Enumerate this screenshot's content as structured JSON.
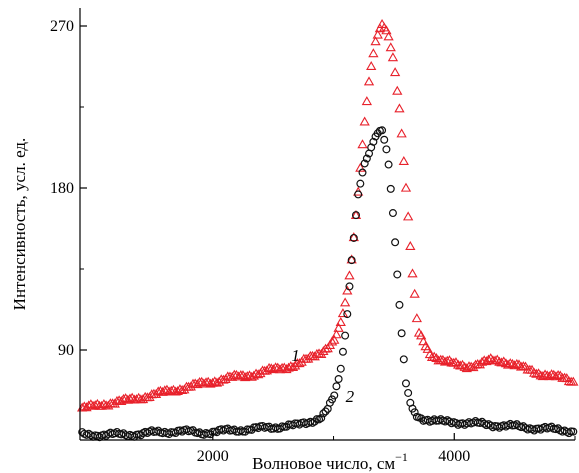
{
  "chart_data": {
    "type": "scatter",
    "title": "",
    "xlabel": "Волновое число, см",
    "xlabel_sup": "−1",
    "ylabel": "Интенсивность, усл. ед.",
    "xlim": [
      900,
      5000
    ],
    "ylim": [
      40,
      280
    ],
    "x_ticks": [
      2000,
      4000
    ],
    "x_tick_labels": [
      "2000",
      "4000"
    ],
    "x_minor_ticks": [
      1000,
      3000,
      5000
    ],
    "y_ticks": [
      90,
      180,
      270
    ],
    "y_tick_labels": [
      "90",
      "180",
      "270"
    ],
    "y_minor_ticks": [
      135,
      225
    ],
    "grid": false,
    "legend": "none",
    "series": [
      {
        "name": "1",
        "marker": "triangle-open",
        "color": "#e8212b",
        "label_at": [
          2650,
          84
        ],
        "x": [
          900,
          1100,
          1300,
          1500,
          1700,
          1900,
          2100,
          2300,
          2500,
          2700,
          2800,
          2900,
          3000,
          3050,
          3100,
          3150,
          3200,
          3250,
          3300,
          3350,
          3400,
          3450,
          3500,
          3550,
          3600,
          3650,
          3700,
          3800,
          3900,
          4000,
          4100,
          4200,
          4300,
          4400,
          4500,
          4600,
          4700,
          4800,
          4900,
          5000
        ],
        "y": [
          57,
          60,
          62,
          65,
          68,
          71,
          74,
          76,
          79,
          82,
          85,
          89,
          95,
          102,
          116,
          140,
          175,
          212,
          243,
          262,
          271,
          266,
          250,
          222,
          180,
          135,
          100,
          88,
          84,
          82,
          81,
          82,
          84,
          84,
          82,
          79,
          77,
          76,
          74,
          72
        ]
      },
      {
        "name": "2",
        "marker": "circle-open",
        "color": "#111111",
        "label_at": [
          3100,
          61
        ],
        "x": [
          900,
          1100,
          1300,
          1500,
          1700,
          1900,
          2100,
          2300,
          2500,
          2600,
          2700,
          2800,
          2900,
          2950,
          3000,
          3050,
          3100,
          3150,
          3200,
          3250,
          3300,
          3350,
          3400,
          3450,
          3500,
          3550,
          3600,
          3650,
          3700,
          3750,
          3800,
          3900,
          4000,
          4200,
          4400,
          4600,
          4800,
          5000
        ],
        "y": [
          43,
          43,
          43,
          44,
          45,
          44,
          45,
          46,
          47,
          48,
          48,
          50,
          53,
          57,
          63,
          75,
          100,
          140,
          175,
          192,
          200,
          209,
          213,
          198,
          160,
          110,
          70,
          57,
          53,
          52,
          51,
          50,
          50,
          49,
          48,
          47,
          46,
          45
        ]
      }
    ]
  }
}
